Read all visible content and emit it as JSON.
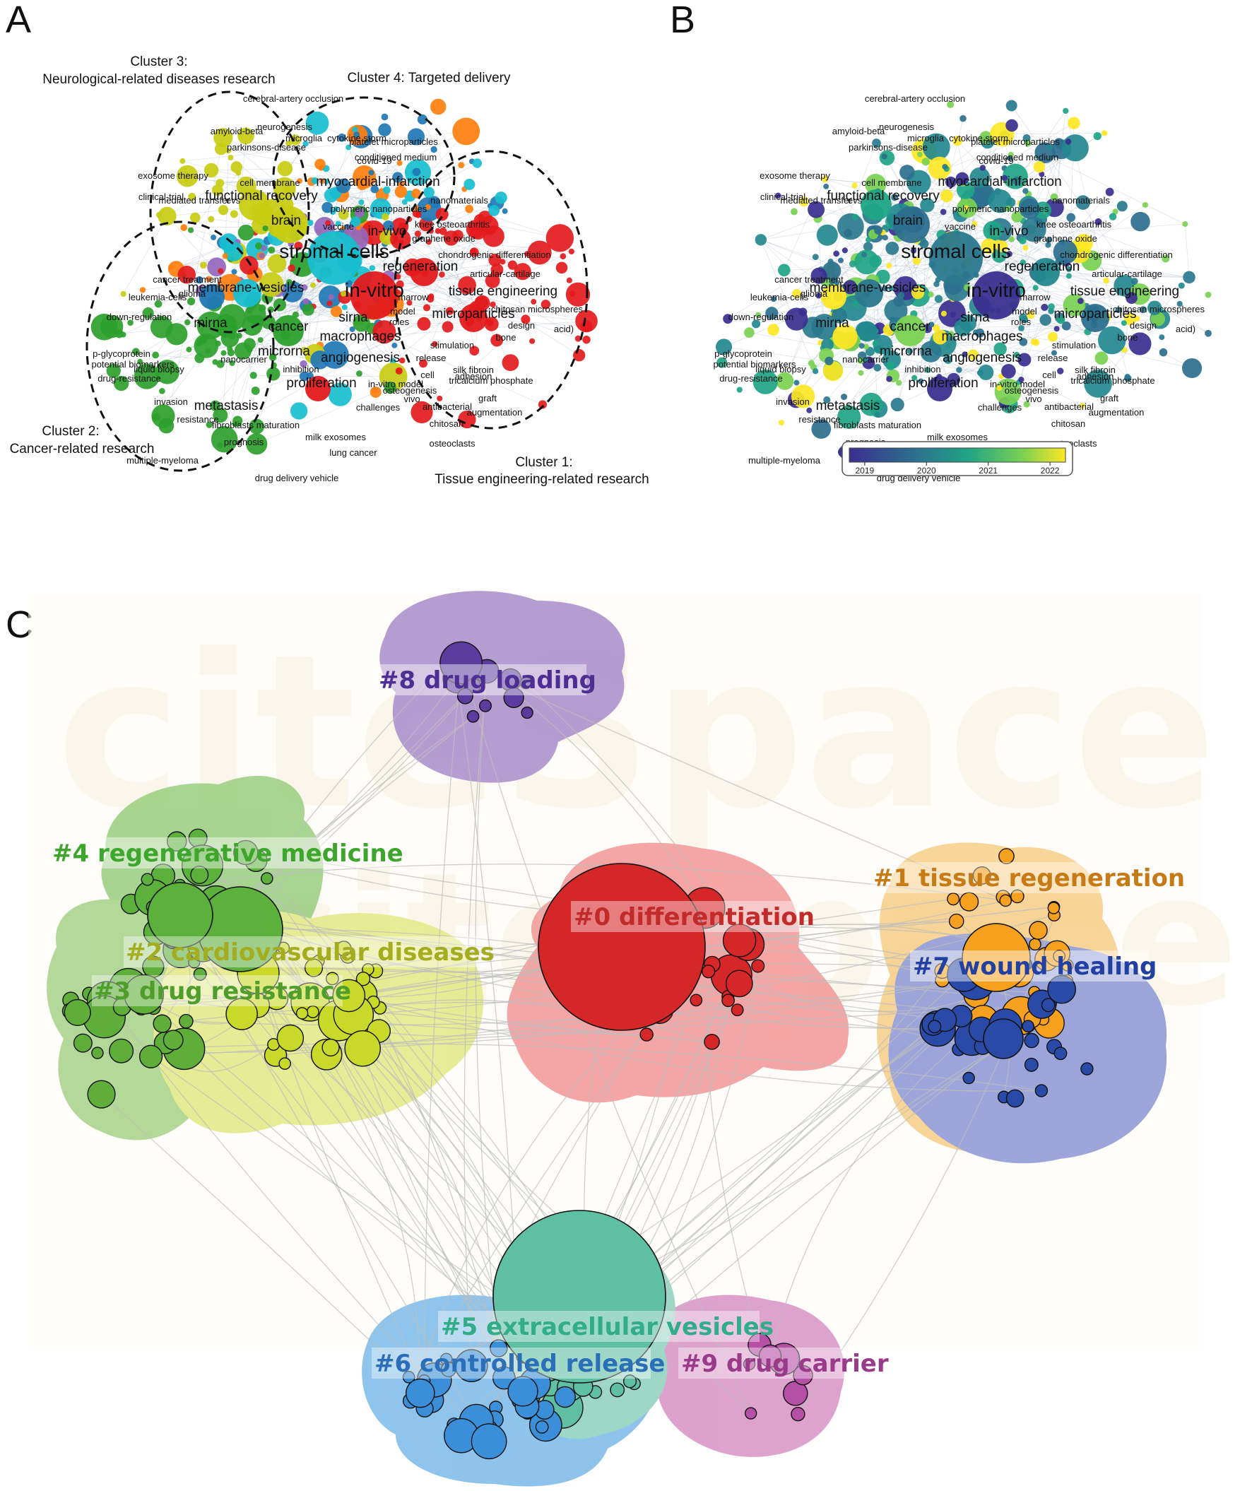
{
  "panels": {
    "a": {
      "letter": "A",
      "cluster_labels": {
        "c3_line1": "Cluster 3:",
        "c3_line2": "Neurological-related diseases research",
        "c4": "Cluster 4: Targeted delivery",
        "c2_line1": "Cluster 2:",
        "c2_line2": "Cancer-related research",
        "c1_line1": "Cluster 1:",
        "c1_line2": "Tissue engineering-related research"
      }
    },
    "b": {
      "letter": "B"
    },
    "c": {
      "letter": "C",
      "watermark": "citeSpace"
    }
  },
  "keywords_ab": {
    "big": [
      "stromal cells",
      "in-vitro"
    ],
    "medium": [
      "functional recovery",
      "brain",
      "membrane-vesicles",
      "cancer",
      "microrna",
      "angiogenesis",
      "mirna",
      "sirna",
      "regeneration",
      "tissue engineering",
      "microparticles",
      "in-vivo",
      "myocardial-infarction",
      "macrophages",
      "proliferation",
      "metastasis"
    ],
    "small": [
      "cerebral-artery occlusion",
      "amyloid-beta",
      "neurogenesis",
      "microglia",
      "cytokine storm",
      "platelet microparticles",
      "conditioned medium",
      "parkinsons-disease",
      "covid-19",
      "exosome therapy",
      "cell membrane",
      "clinical-trial",
      "mediated transfer",
      "evs",
      "vaccine",
      "polymeric nanoparticles",
      "nanomaterials",
      "knee osteoarthritis",
      "graphene oxide",
      "chondrogenic differentiation",
      "articular-cartilage",
      "cancer treatment",
      "glioma",
      "leukemia-cells",
      "down-regulation",
      "marrow",
      "model",
      "roles",
      "chitosan microspheres",
      "design",
      "acid)",
      "bone",
      "liquid biopsy",
      "p-glycoprotein",
      "potential biomarkers",
      "drug-resistance",
      "nanocarrier",
      "inhibition",
      "release",
      "stimulation",
      "silk fibroin",
      "tricalcium phosphate",
      "in-vitro model",
      "cell",
      "adhesion",
      "osteogenesis",
      "graft",
      "invasion",
      "resistance",
      "challenges",
      "antibacterial",
      "augmentation",
      "fibroblasts maturation",
      "milk exosomes",
      "vivo",
      "chitosan",
      "prognosis",
      "osteoclasts",
      "multiple-myeloma",
      "lung cancer",
      "drug delivery vehicle"
    ]
  },
  "overlay_colorbar": {
    "ticks": [
      "2019",
      "2020",
      "2021",
      "2022"
    ],
    "range": [
      2018.75,
      2022.25
    ],
    "stops": [
      "#3b2f8f",
      "#2c6f8e",
      "#20a486",
      "#7ad151",
      "#fde725"
    ]
  },
  "cluster_colors": {
    "red": "#e31a1c",
    "green": "#2ca02c",
    "yellow": "#c8cc12",
    "purple": "#9467bd",
    "blue": "#1f77b4",
    "orange": "#ff7f0e",
    "cyan": "#17becf",
    "brown": "#a0786e"
  },
  "clusters_c": [
    {
      "label": "#0 differentiation",
      "color": "#d62728",
      "hull": "#f39a9a",
      "text": "#c32a2a"
    },
    {
      "label": "#1 tissue regeneration",
      "color": "#f5a01e",
      "hull": "#f7cf8a",
      "text": "#c77b17"
    },
    {
      "label": "#2 cardiovascular diseases",
      "color": "#c9d92a",
      "hull": "#e2ea88",
      "text": "#a4ad20"
    },
    {
      "label": "#3 drug resistance",
      "color": "#5fae3a",
      "hull": "#a9d38b",
      "text": "#4f9e2c"
    },
    {
      "label": "#4 regenerative medicine",
      "color": "#5cb03c",
      "hull": "#9ccf83",
      "text": "#3ea62c"
    },
    {
      "label": "#5 extracellular vesicles",
      "color": "#5fbfa2",
      "hull": "#92d2bf",
      "text": "#32ad8a"
    },
    {
      "label": "#6 controlled release",
      "color": "#3a8fd8",
      "hull": "#7fbde9",
      "text": "#2a6fb7"
    },
    {
      "label": "#7 wound healing",
      "color": "#2a4aa8",
      "hull": "#8f9ad6",
      "text": "#22409f"
    },
    {
      "label": "#8 drug loading",
      "color": "#5a3b9e",
      "hull": "#ab8fcc",
      "text": "#4d2e93"
    },
    {
      "label": "#9 drug carrier",
      "color": "#b64fa6",
      "hull": "#d995c8",
      "text": "#9a3b8a"
    }
  ]
}
